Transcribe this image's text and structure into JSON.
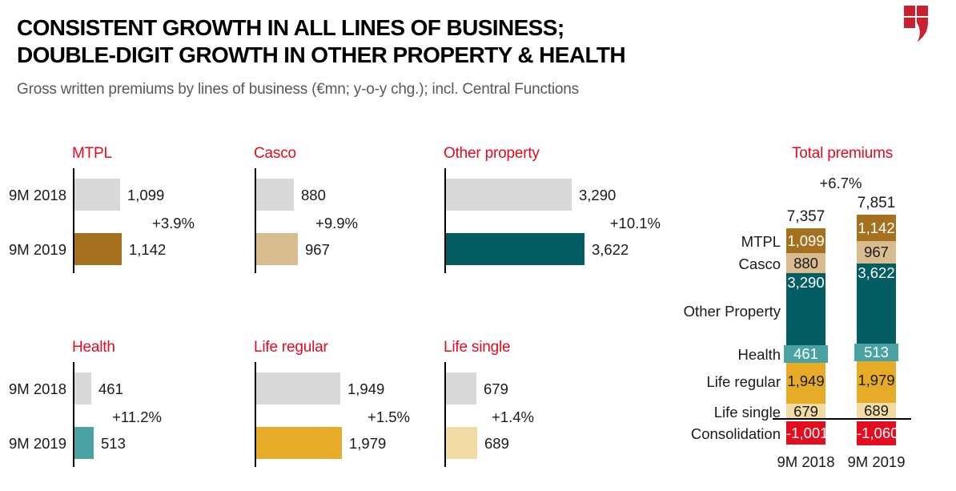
{
  "colors": {
    "accent_red": "#e30b20",
    "logo_red": "#cb2030",
    "gray_bar": "#d9d9d9",
    "text_dark": "#1a1a1a",
    "subtitle_gray": "#595959",
    "axis_black": "#000000"
  },
  "header": {
    "title_line1": "CONSISTENT GROWTH IN ALL LINES OF BUSINESS;",
    "title_line2": "DOUBLE-DIGIT GROWTH IN OTHER PROPERTY & HEALTH",
    "subtitle": "Gross written premiums by lines of business (€mn; y-o-y chg.); incl. Central Functions",
    "logo_icon": "vig-shield-flame-logo"
  },
  "periods": [
    "9M 2018",
    "9M 2019"
  ],
  "chart_data": {
    "mini_charts": [
      {
        "type": "bar",
        "title": "MTPL",
        "categories": [
          "9M 2018",
          "9M 2019"
        ],
        "values": [
          1099,
          1142
        ],
        "labels": [
          "1,099",
          "1,142"
        ],
        "change": "+3.9%",
        "bar_colors": [
          "#d9d9d9",
          "#a6711f"
        ]
      },
      {
        "type": "bar",
        "title": "Casco",
        "categories": [
          "9M 2018",
          "9M 2019"
        ],
        "values": [
          880,
          967
        ],
        "labels": [
          "880",
          "967"
        ],
        "change": "+9.9%",
        "bar_colors": [
          "#d9d9d9",
          "#d8bb8e"
        ]
      },
      {
        "type": "bar",
        "title": "Other property",
        "categories": [
          "9M 2018",
          "9M 2019"
        ],
        "values": [
          3290,
          3622
        ],
        "labels": [
          "3,290",
          "3,622"
        ],
        "change": "+10.1%",
        "bar_colors": [
          "#d9d9d9",
          "#035d62"
        ]
      },
      {
        "type": "bar",
        "title": "Health",
        "categories": [
          "9M 2018",
          "9M 2019"
        ],
        "values": [
          461,
          513
        ],
        "labels": [
          "461",
          "513"
        ],
        "change": "+11.2%",
        "bar_colors": [
          "#d9d9d9",
          "#4aa3a2"
        ]
      },
      {
        "type": "bar",
        "title": "Life regular",
        "categories": [
          "9M 2018",
          "9M 2019"
        ],
        "values": [
          1949,
          1979
        ],
        "labels": [
          "1,949",
          "1,979"
        ],
        "change": "+1.5%",
        "bar_colors": [
          "#d9d9d9",
          "#e6ac28"
        ]
      },
      {
        "type": "bar",
        "title": "Life single",
        "categories": [
          "9M 2018",
          "9M 2019"
        ],
        "values": [
          679,
          689
        ],
        "labels": [
          "679",
          "689"
        ],
        "change": "+1.4%",
        "bar_colors": [
          "#d9d9d9",
          "#f2dca6"
        ]
      }
    ],
    "stacked": {
      "type": "stacked-bar",
      "title": "Total premiums",
      "change": "+6.7%",
      "categories": [
        "9M 2018",
        "9M 2019"
      ],
      "totals": [
        "7,357",
        "7,851"
      ],
      "series": [
        {
          "name": "MTPL",
          "values": [
            1099,
            1142
          ],
          "labels": [
            "1,099",
            "1,142"
          ],
          "color": "#a6711f",
          "text": "#ffffff"
        },
        {
          "name": "Casco",
          "values": [
            880,
            967
          ],
          "labels": [
            "880",
            "967"
          ],
          "color": "#d8bb8e",
          "text": "#1a1a1a"
        },
        {
          "name": "Other Property",
          "values": [
            3290,
            3622
          ],
          "labels": [
            "3,290",
            "3,622"
          ],
          "color": "#035d62",
          "text": "#ffffff",
          "label_top": true
        },
        {
          "name": "Health",
          "values": [
            461,
            513
          ],
          "labels": [
            "461",
            "513"
          ],
          "color": "#4aa3a2",
          "text": "#ffffff",
          "badge": true
        },
        {
          "name": "Life regular",
          "values": [
            1949,
            1979
          ],
          "labels": [
            "1,949",
            "1,979"
          ],
          "color": "#e6ac28",
          "text": "#1a1a1a"
        },
        {
          "name": "Life single",
          "values": [
            679,
            689
          ],
          "labels": [
            "679",
            "689"
          ],
          "color": "#f2dca6",
          "text": "#1a1a1a"
        },
        {
          "name": "Consolidation",
          "values": [
            -1001,
            -1060
          ],
          "labels": [
            "-1,001",
            "-1,060"
          ],
          "color": "#e40d20",
          "text": "#ffffff",
          "below_axis": true
        }
      ]
    }
  }
}
